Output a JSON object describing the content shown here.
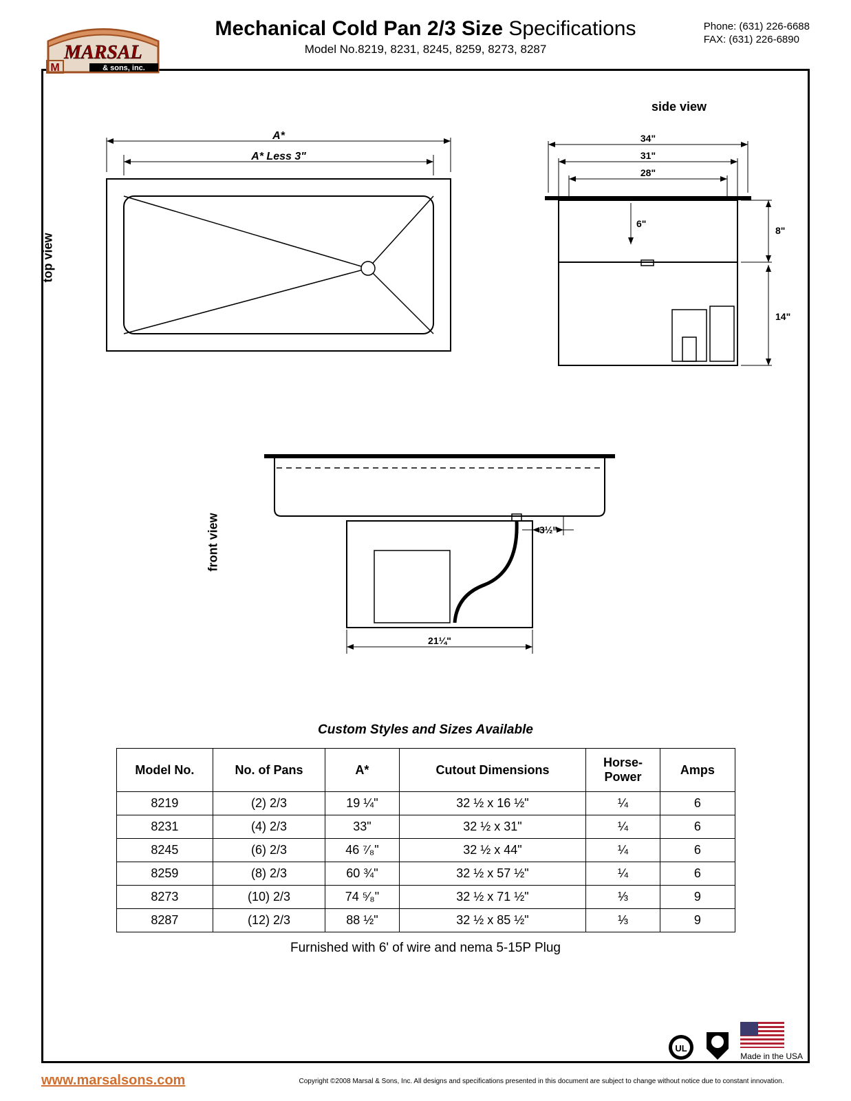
{
  "header": {
    "logo": {
      "brand": "MARSAL",
      "subtitle": "& sons, inc."
    },
    "title_bold": "Mechanical Cold Pan 2/3 Size",
    "title_light": " Specifications",
    "subtitle": "Model No.8219, 8231, 8245, 8259, 8273, 8287",
    "phone": "Phone: (631) 226-6688",
    "fax": "FAX: (631) 226-6890"
  },
  "views": {
    "top_label": "top view",
    "side_label": "side view",
    "front_label": "front view",
    "top": {
      "dim_a": "A*",
      "dim_a_less": "A* Less 3\""
    },
    "side": {
      "d34": "34\"",
      "d31": "31\"",
      "d28": "28\"",
      "d6": "6\"",
      "d8": "8\"",
      "d14": "14\""
    },
    "front": {
      "d35": "3½\"",
      "d2125": "21¼\""
    }
  },
  "table": {
    "caption": "Custom Styles and Sizes Available",
    "headers": [
      "Model No.",
      "No. of Pans",
      "A*",
      "Cutout Dimensions",
      "Horse-\nPower",
      "Amps"
    ],
    "rows": [
      [
        "8219",
        "(2) 2/3",
        "19 ¼\"",
        "32 ½ x 16 ½\"",
        "¼",
        "6"
      ],
      [
        "8231",
        "(4) 2/3",
        "33\"",
        "32 ½ x 31\"",
        "¼",
        "6"
      ],
      [
        "8245",
        "(6) 2/3",
        "46 ⁷⁄₈\"",
        "32 ½ x 44\"",
        "¼",
        "6"
      ],
      [
        "8259",
        "(8) 2/3",
        "60 ¾\"",
        "32 ½ x 57 ½\"",
        "¼",
        "6"
      ],
      [
        "8273",
        "(10) 2/3",
        "74 ⁵⁄₈\"",
        "32 ½ x 71 ½\"",
        "⅓",
        "9"
      ],
      [
        "8287",
        "(12) 2/3",
        "88 ½\"",
        "32 ½ x 85 ½\"",
        "⅓",
        "9"
      ]
    ],
    "note": "Furnished with 6' of wire and nema 5-15P Plug"
  },
  "footer": {
    "url": "www.marsalsons.com",
    "made_in": "Made in the USA",
    "copyright": "Copyright ©2008 Marsal & Sons, Inc.  All designs and specifications presented in this document are subject to change without notice due to constant innovation."
  },
  "colors": {
    "logo_fill": "#d89060",
    "logo_stroke": "#a05020",
    "url_color": "#d07030",
    "border": "#000000"
  }
}
